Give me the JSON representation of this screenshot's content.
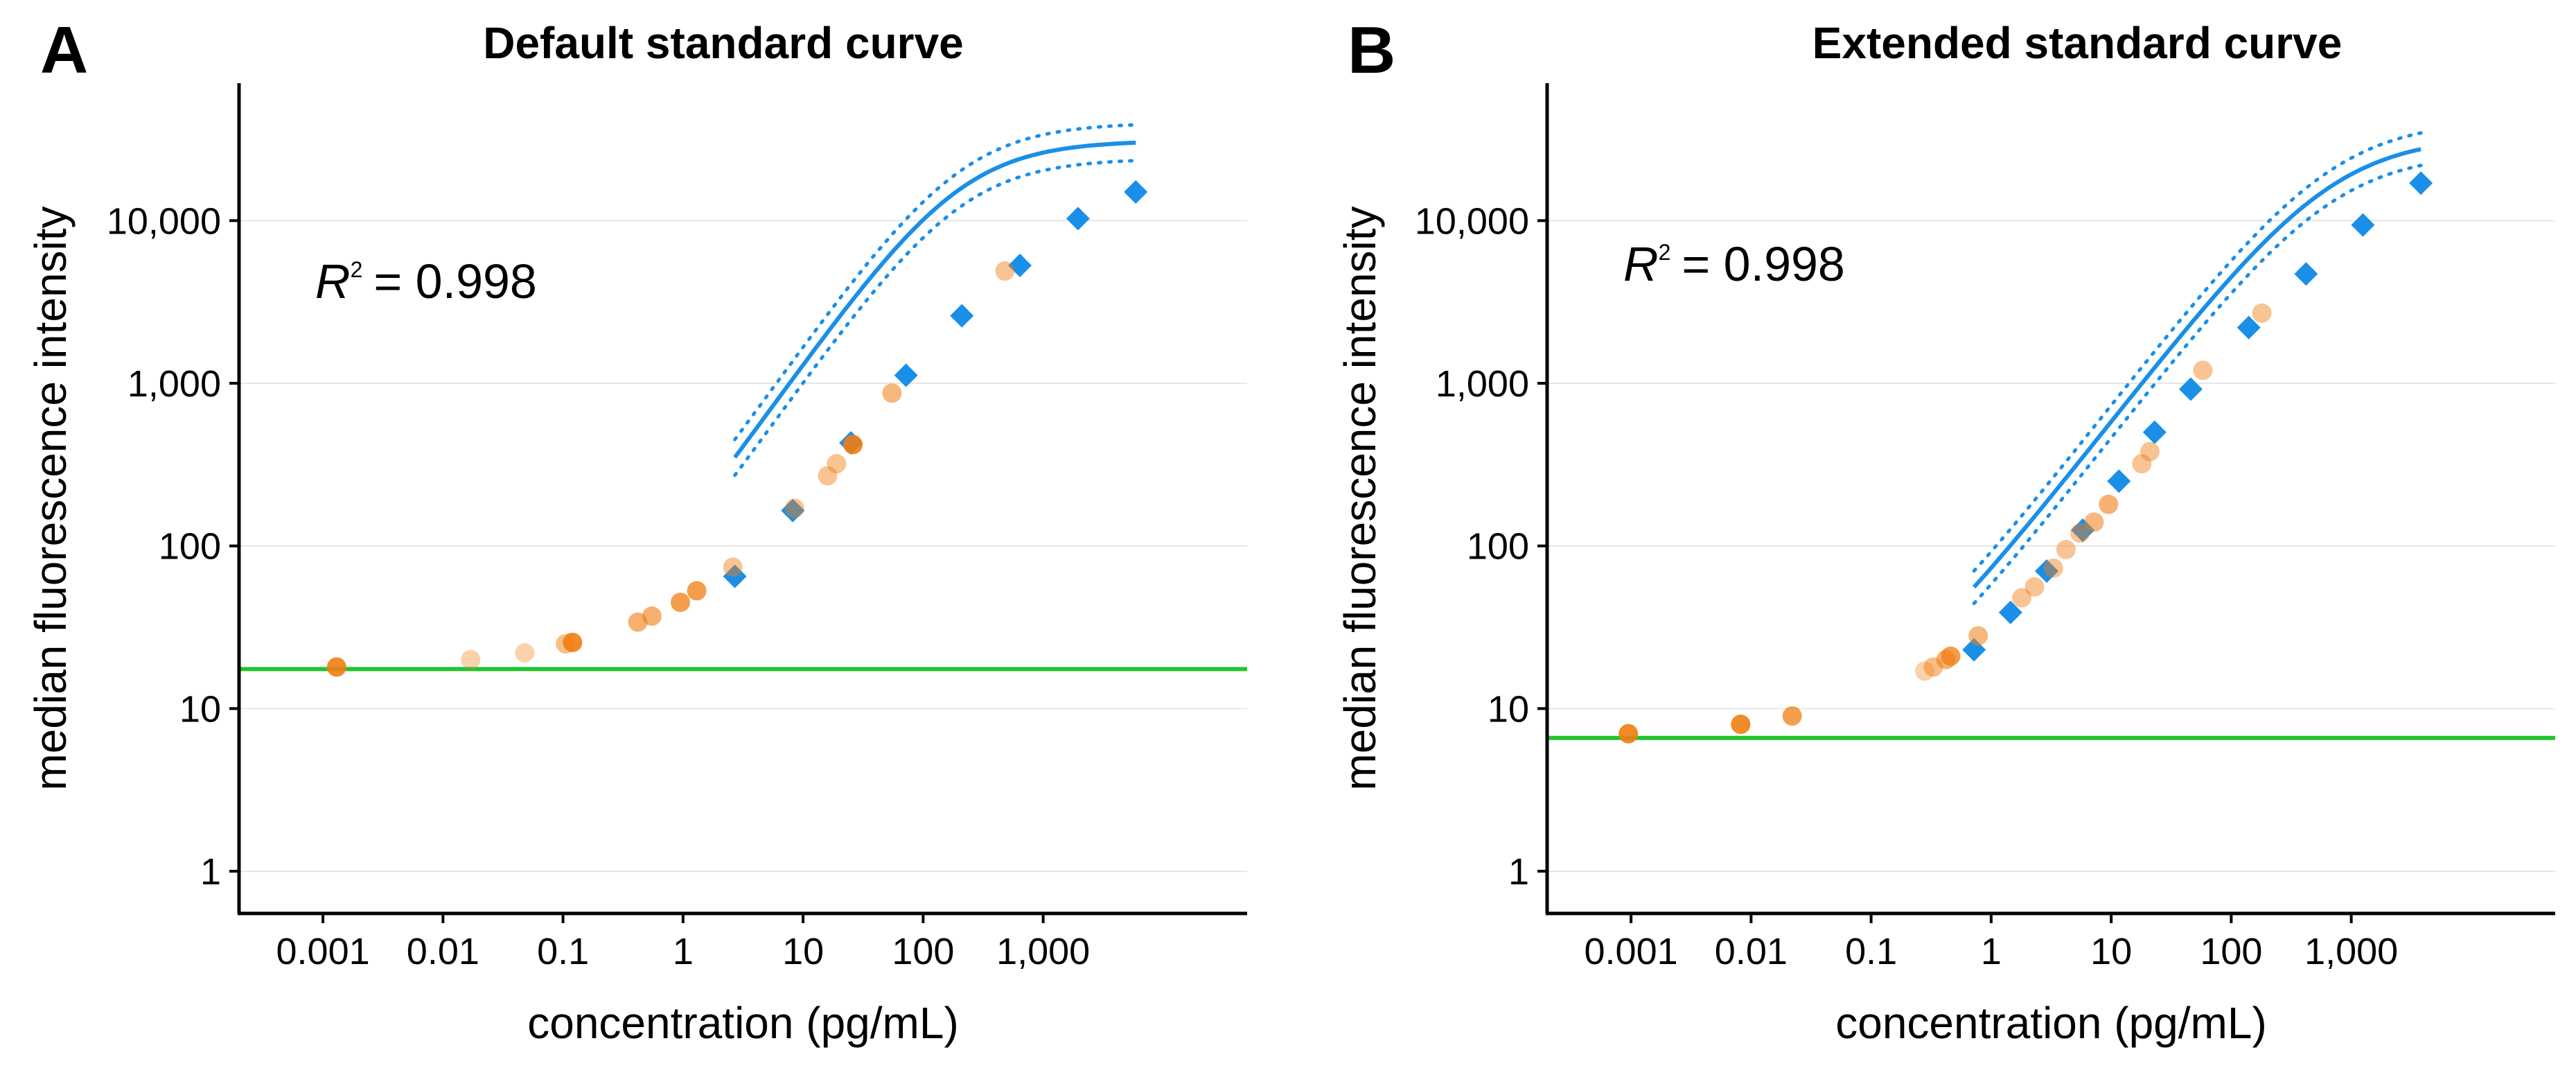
{
  "colors": {
    "standard": "#1a8fe8",
    "sample": "#f07d12",
    "threshold": "#22c52e",
    "grid": "#e6e6e6"
  },
  "chart_data": [
    {
      "type": "scatter",
      "panel": "A",
      "title": "Default standard curve",
      "xlabel": "concentration (pg/mL)",
      "ylabel": "median fluorescence intensity",
      "x_scale": "log",
      "y_scale": "log",
      "xlim": [
        0.0002,
        50000
      ],
      "ylim": [
        0.55,
        70000
      ],
      "x_ticks": [
        0.001,
        0.01,
        0.1,
        1,
        10,
        100,
        1000
      ],
      "x_tick_labels": [
        "0.001",
        "0.01",
        "0.1",
        "1",
        "10",
        "100",
        "1,000"
      ],
      "y_ticks": [
        1,
        10,
        100,
        1000,
        10000
      ],
      "y_tick_labels": [
        "1",
        "10",
        "100",
        "1,000",
        "10,000"
      ],
      "grid": "horizontal",
      "r2_label": "R",
      "r2_sup": "2",
      "r2_value": "= 0.998",
      "threshold_y": 17.5,
      "standards": {
        "x": [
          2.7,
          8.2,
          25,
          72,
          210,
          640,
          1950,
          5900
        ],
        "y": [
          65,
          165,
          430,
          1120,
          2600,
          5300,
          10300,
          15000
        ]
      },
      "fit": {
        "A": 16.5,
        "D": 31000,
        "C": 200,
        "B": 1.05,
        "x_range": [
          2.7,
          5900
        ],
        "band": 0.11
      },
      "samples": {
        "x": [
          0.0013,
          0.017,
          0.048,
          0.105,
          0.12,
          0.42,
          0.55,
          0.95,
          1.3,
          2.6,
          8.5,
          16,
          19,
          26,
          55,
          480
        ],
        "y": [
          18,
          20,
          22,
          25,
          25.5,
          34,
          37,
          45,
          53,
          74,
          170,
          270,
          320,
          420,
          870,
          4900
        ],
        "alpha": [
          0.9,
          0.35,
          0.35,
          0.5,
          0.9,
          0.6,
          0.6,
          0.75,
          0.75,
          0.45,
          0.45,
          0.45,
          0.45,
          0.9,
          0.55,
          0.45
        ]
      }
    },
    {
      "type": "scatter",
      "panel": "B",
      "title": "Extended standard curve",
      "xlabel": "concentration (pg/mL)",
      "ylabel": "median fluorescence intensity",
      "x_scale": "log",
      "y_scale": "log",
      "xlim": [
        0.0002,
        50000
      ],
      "ylim": [
        0.55,
        70000
      ],
      "x_ticks": [
        0.001,
        0.01,
        0.1,
        1,
        10,
        100,
        1000
      ],
      "x_tick_labels": [
        "0.001",
        "0.01",
        "0.1",
        "1",
        "10",
        "100",
        "1,000"
      ],
      "y_ticks": [
        1,
        10,
        100,
        1000,
        10000
      ],
      "y_tick_labels": [
        "1",
        "10",
        "100",
        "1,000",
        "10,000"
      ],
      "grid": "horizontal",
      "r2_label": "R",
      "r2_sup": "2",
      "r2_value": "= 0.998",
      "threshold_y": 6.6,
      "standards": {
        "x": [
          0.72,
          1.45,
          2.9,
          5.8,
          11.6,
          23,
          46,
          140,
          420,
          1250,
          3800
        ],
        "y": [
          23,
          39,
          70,
          125,
          250,
          500,
          920,
          2200,
          4700,
          9400,
          17000
        ]
      },
      "fit": {
        "A": 8,
        "D": 33000,
        "C": 700,
        "B": 0.95,
        "x_range": [
          0.72,
          3800
        ],
        "band": 0.1
      },
      "samples": {
        "x": [
          0.00095,
          0.0082,
          0.022,
          0.28,
          0.33,
          0.42,
          0.46,
          0.78,
          1.8,
          2.3,
          3.3,
          4.2,
          5.5,
          7.2,
          9.5,
          18,
          21,
          58,
          180
        ],
        "y": [
          7,
          8,
          9,
          17,
          18,
          20,
          21,
          28,
          48,
          56,
          73,
          95,
          120,
          140,
          180,
          320,
          380,
          1200,
          2700
        ],
        "alpha": [
          0.9,
          0.9,
          0.75,
          0.35,
          0.5,
          0.6,
          0.75,
          0.55,
          0.45,
          0.45,
          0.45,
          0.45,
          0.45,
          0.55,
          0.6,
          0.45,
          0.45,
          0.45,
          0.45
        ]
      }
    }
  ]
}
